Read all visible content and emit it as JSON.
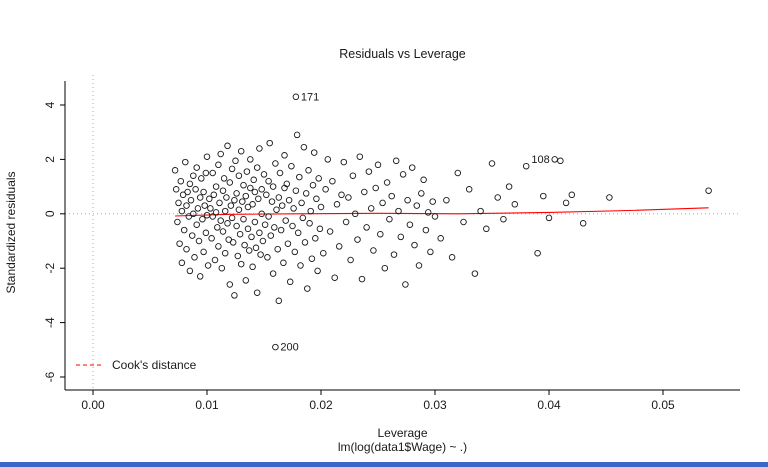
{
  "window": {
    "edge_color": "#3a66c8"
  },
  "chart_data": {
    "type": "scatter",
    "title": "Residuals vs Leverage",
    "xlabel": "Leverage",
    "sub_xlabel": "lm(log(data1$Wage) ~ .)",
    "ylabel": "Standardized residuals",
    "xlim": [
      -0.00246,
      0.05675
    ],
    "ylim": [
      -6.48,
      5.1
    ],
    "xticks": [
      "0.00",
      "0.01",
      "0.02",
      "0.03",
      "0.04",
      "0.05"
    ],
    "yticks": [
      -6,
      -4,
      -2,
      0,
      2,
      4
    ],
    "grid": false,
    "point_color": "#1a1a1a",
    "reference_lines": {
      "vline_x": 0,
      "hline_y": 0,
      "style": "dotted",
      "color": "#aaaaaa"
    },
    "smooth_line": {
      "color": "#ff0000",
      "points": [
        [
          0.0072,
          -0.08
        ],
        [
          0.012,
          -0.02
        ],
        [
          0.018,
          0.0
        ],
        [
          0.025,
          0.02
        ],
        [
          0.032,
          0.0
        ],
        [
          0.04,
          0.05
        ],
        [
          0.047,
          0.12
        ],
        [
          0.054,
          0.22
        ]
      ]
    },
    "legend": {
      "label": "Cook's distance",
      "color": "#ff0000",
      "line_style": "dashed",
      "position": "bottom-left"
    },
    "labeled_points": [
      {
        "label": "171",
        "x": 0.0178,
        "y": 4.3,
        "label_side": "right"
      },
      {
        "label": "108",
        "x": 0.0405,
        "y": 2.0,
        "label_side": "left"
      },
      {
        "label": "200",
        "x": 0.016,
        "y": -4.9,
        "label_side": "right"
      }
    ],
    "points": [
      [
        0.0072,
        1.6
      ],
      [
        0.0073,
        0.9
      ],
      [
        0.0074,
        -0.3
      ],
      [
        0.0075,
        0.4
      ],
      [
        0.0076,
        -1.1
      ],
      [
        0.0077,
        1.2
      ],
      [
        0.0078,
        0.1
      ],
      [
        0.0078,
        -1.8
      ],
      [
        0.0079,
        0.7
      ],
      [
        0.008,
        -0.6
      ],
      [
        0.0081,
        1.9
      ],
      [
        0.0082,
        0.3
      ],
      [
        0.0082,
        -1.3
      ],
      [
        0.0083,
        0.8
      ],
      [
        0.0084,
        -0.1
      ],
      [
        0.0085,
        1.1
      ],
      [
        0.0085,
        -2.1
      ],
      [
        0.0086,
        0.5
      ],
      [
        0.0087,
        -0.8
      ],
      [
        0.0088,
        1.4
      ],
      [
        0.0088,
        0.0
      ],
      [
        0.0089,
        -1.6
      ],
      [
        0.009,
        0.9
      ],
      [
        0.0091,
        -0.4
      ],
      [
        0.0091,
        1.7
      ],
      [
        0.0092,
        0.2
      ],
      [
        0.0093,
        -1.0
      ],
      [
        0.0094,
        0.6
      ],
      [
        0.0094,
        -2.3
      ],
      [
        0.0095,
        1.3
      ],
      [
        0.0096,
        -0.2
      ],
      [
        0.0097,
        0.8
      ],
      [
        0.0097,
        -1.4
      ],
      [
        0.0098,
        0.3
      ],
      [
        0.0099,
        -0.7
      ],
      [
        0.0099,
        1.5
      ],
      [
        0.01,
        -0.05
      ],
      [
        0.01,
        2.1
      ],
      [
        0.0101,
        -1.9
      ],
      [
        0.0102,
        0.55
      ],
      [
        0.0103,
        0.2
      ],
      [
        0.0104,
        -0.9
      ],
      [
        0.0105,
        1.5
      ],
      [
        0.0105,
        -0.1
      ],
      [
        0.0106,
        0.7
      ],
      [
        0.0107,
        -1.7
      ],
      [
        0.0108,
        1.0
      ],
      [
        0.0108,
        0.05
      ],
      [
        0.0109,
        -0.5
      ],
      [
        0.011,
        1.8
      ],
      [
        0.011,
        -1.2
      ],
      [
        0.0111,
        0.4
      ],
      [
        0.0112,
        -0.25
      ],
      [
        0.0112,
        2.2
      ],
      [
        0.0113,
        -2.0
      ],
      [
        0.0114,
        0.85
      ],
      [
        0.0114,
        -0.65
      ],
      [
        0.0115,
        1.3
      ],
      [
        0.0116,
        0.1
      ],
      [
        0.0116,
        -1.45
      ],
      [
        0.0117,
        0.6
      ],
      [
        0.0118,
        -0.35
      ],
      [
        0.0118,
        2.5
      ],
      [
        0.0119,
        -0.95
      ],
      [
        0.012,
        1.15
      ],
      [
        0.012,
        -2.6
      ],
      [
        0.0121,
        0.3
      ],
      [
        0.0122,
        -0.15
      ],
      [
        0.0122,
        1.65
      ],
      [
        0.0123,
        -1.05
      ],
      [
        0.0124,
        0.5
      ],
      [
        0.0124,
        -3.0
      ],
      [
        0.0125,
        1.95
      ],
      [
        0.0126,
        -0.45
      ],
      [
        0.0126,
        0.75
      ],
      [
        0.0127,
        -1.55
      ],
      [
        0.0128,
        0.15
      ],
      [
        0.0128,
        1.4
      ],
      [
        0.0129,
        -0.75
      ],
      [
        0.013,
        2.3
      ],
      [
        0.013,
        -1.85
      ],
      [
        0.0131,
        0.45
      ],
      [
        0.0132,
        -0.2
      ],
      [
        0.0132,
        1.05
      ],
      [
        0.0133,
        -1.15
      ],
      [
        0.0134,
        0.65
      ],
      [
        0.0134,
        -2.45
      ],
      [
        0.0135,
        1.55
      ],
      [
        0.0136,
        -0.55
      ],
      [
        0.0136,
        0.25
      ],
      [
        0.0137,
        -1.35
      ],
      [
        0.0138,
        0.95
      ],
      [
        0.0138,
        2.0
      ],
      [
        0.0139,
        -0.85
      ],
      [
        0.014,
        0.35
      ],
      [
        0.014,
        -1.95
      ],
      [
        0.0141,
        1.25
      ],
      [
        0.0142,
        -0.3
      ],
      [
        0.0142,
        0.8
      ],
      [
        0.0143,
        -1.25
      ],
      [
        0.0144,
        1.7
      ],
      [
        0.0144,
        -2.9
      ],
      [
        0.0145,
        0.55
      ],
      [
        0.0146,
        -0.7
      ],
      [
        0.0146,
        2.4
      ],
      [
        0.0147,
        -1.5
      ],
      [
        0.0148,
        0.9
      ],
      [
        0.0148,
        0.0
      ],
      [
        0.0149,
        -1.0
      ],
      [
        0.015,
        1.45
      ],
      [
        0.0151,
        -0.4
      ],
      [
        0.0152,
        0.7
      ],
      [
        0.0153,
        -1.6
      ],
      [
        0.0154,
        1.2
      ],
      [
        0.0154,
        -0.1
      ],
      [
        0.0155,
        2.6
      ],
      [
        0.0156,
        -0.8
      ],
      [
        0.0157,
        0.45
      ],
      [
        0.0158,
        -2.2
      ],
      [
        0.0158,
        1.0
      ],
      [
        0.0159,
        -0.5
      ],
      [
        0.016,
        1.85
      ],
      [
        0.0161,
        0.15
      ],
      [
        0.0162,
        -1.3
      ],
      [
        0.0163,
        0.6
      ],
      [
        0.0163,
        -3.2
      ],
      [
        0.0164,
        1.5
      ],
      [
        0.0165,
        -0.6
      ],
      [
        0.0166,
        0.3
      ],
      [
        0.0167,
        -1.8
      ],
      [
        0.0168,
        0.95
      ],
      [
        0.0168,
        2.15
      ],
      [
        0.0169,
        -0.25
      ],
      [
        0.017,
        1.1
      ],
      [
        0.0171,
        -1.1
      ],
      [
        0.0172,
        0.5
      ],
      [
        0.0173,
        -2.5
      ],
      [
        0.0174,
        1.75
      ],
      [
        0.0175,
        -0.45
      ],
      [
        0.0176,
        0.2
      ],
      [
        0.0177,
        -1.4
      ],
      [
        0.0178,
        0.85
      ],
      [
        0.0179,
        2.9
      ],
      [
        0.018,
        -0.7
      ],
      [
        0.0181,
        1.35
      ],
      [
        0.0182,
        -1.9
      ],
      [
        0.0183,
        0.4
      ],
      [
        0.0184,
        -0.15
      ],
      [
        0.0185,
        2.45
      ],
      [
        0.0186,
        -1.05
      ],
      [
        0.0187,
        0.75
      ],
      [
        0.0188,
        -2.75
      ],
      [
        0.0189,
        1.6
      ],
      [
        0.019,
        -0.35
      ],
      [
        0.0191,
        0.1
      ],
      [
        0.0192,
        -1.65
      ],
      [
        0.0193,
        1.05
      ],
      [
        0.0194,
        2.25
      ],
      [
        0.0195,
        -0.9
      ],
      [
        0.0196,
        0.55
      ],
      [
        0.0197,
        -2.1
      ],
      [
        0.0198,
        1.3
      ],
      [
        0.0199,
        -0.55
      ],
      [
        0.02,
        0.25
      ],
      [
        0.0202,
        -1.45
      ],
      [
        0.0204,
        0.9
      ],
      [
        0.0206,
        2.0
      ],
      [
        0.0208,
        -0.65
      ],
      [
        0.021,
        1.2
      ],
      [
        0.0212,
        -2.35
      ],
      [
        0.0214,
        0.35
      ],
      [
        0.0216,
        -1.2
      ],
      [
        0.0218,
        0.7
      ],
      [
        0.022,
        1.9
      ],
      [
        0.0222,
        -0.3
      ],
      [
        0.0224,
        0.6
      ],
      [
        0.0226,
        -1.7
      ],
      [
        0.0228,
        1.4
      ],
      [
        0.023,
        0.0
      ],
      [
        0.0232,
        -0.95
      ],
      [
        0.0234,
        2.1
      ],
      [
        0.0236,
        -2.4
      ],
      [
        0.0238,
        0.8
      ],
      [
        0.024,
        -0.5
      ],
      [
        0.0242,
        1.55
      ],
      [
        0.0244,
        0.2
      ],
      [
        0.0246,
        -1.35
      ],
      [
        0.0248,
        0.95
      ],
      [
        0.025,
        1.8
      ],
      [
        0.0252,
        -0.75
      ],
      [
        0.0254,
        0.4
      ],
      [
        0.0256,
        -2.0
      ],
      [
        0.0258,
        1.15
      ],
      [
        0.026,
        -0.2
      ],
      [
        0.0262,
        0.65
      ],
      [
        0.0264,
        -1.5
      ],
      [
        0.0266,
        1.95
      ],
      [
        0.0268,
        0.1
      ],
      [
        0.027,
        -0.85
      ],
      [
        0.0272,
        1.45
      ],
      [
        0.0274,
        -2.6
      ],
      [
        0.0276,
        0.5
      ],
      [
        0.0278,
        -0.4
      ],
      [
        0.028,
        1.7
      ],
      [
        0.0282,
        -1.15
      ],
      [
        0.0284,
        0.3
      ],
      [
        0.0286,
        -1.9
      ],
      [
        0.0288,
        0.75
      ],
      [
        0.029,
        1.25
      ],
      [
        0.0292,
        -0.6
      ],
      [
        0.0294,
        0.05
      ],
      [
        0.0296,
        -1.4
      ],
      [
        0.0298,
        0.45
      ],
      [
        0.03,
        -0.1
      ],
      [
        0.0305,
        -0.9
      ],
      [
        0.031,
        0.5
      ],
      [
        0.0315,
        -1.6
      ],
      [
        0.032,
        1.5
      ],
      [
        0.0325,
        -0.3
      ],
      [
        0.033,
        0.9
      ],
      [
        0.0335,
        -2.2
      ],
      [
        0.034,
        0.1
      ],
      [
        0.0345,
        -0.55
      ],
      [
        0.035,
        1.85
      ],
      [
        0.0355,
        0.6
      ],
      [
        0.036,
        -0.2
      ],
      [
        0.0365,
        1.0
      ],
      [
        0.037,
        0.35
      ],
      [
        0.038,
        1.75
      ],
      [
        0.039,
        -1.45
      ],
      [
        0.0395,
        0.65
      ],
      [
        0.04,
        -0.15
      ],
      [
        0.041,
        1.95
      ],
      [
        0.0415,
        0.4
      ],
      [
        0.042,
        0.7
      ],
      [
        0.043,
        -0.35
      ],
      [
        0.0453,
        0.6
      ],
      [
        0.054,
        0.85
      ]
    ]
  }
}
